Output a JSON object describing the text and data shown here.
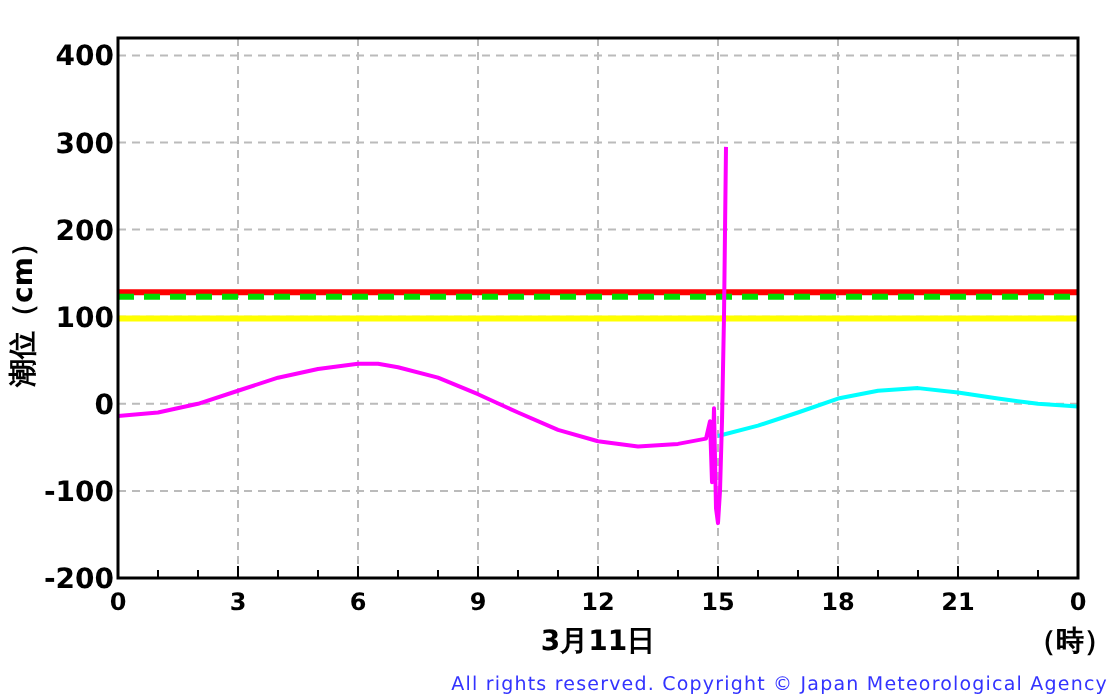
{
  "chart_data": {
    "type": "line",
    "xlabel": "3月11日",
    "ylabel": "潮位（cm）",
    "annotations": [
      "（時）",
      "All rights reserved. Copyright © Japan Meteorological Agency"
    ],
    "xlim": [
      "--03-11T00:00",
      "--03-12T00:00"
    ],
    "xticks": [
      {
        "value": "--03-11T00:00",
        "label": "0"
      },
      {
        "value": "--03-11T01:00",
        "label": null
      },
      {
        "value": "--03-11T02:00",
        "label": null
      },
      {
        "value": "--03-11T03:00",
        "label": "3"
      },
      {
        "value": "--03-11T04:00",
        "label": null
      },
      {
        "value": "--03-11T05:00",
        "label": null
      },
      {
        "value": "--03-11T06:00",
        "label": "6"
      },
      {
        "value": "--03-11T07:00",
        "label": null
      },
      {
        "value": "--03-11T08:00",
        "label": null
      },
      {
        "value": "--03-11T09:00",
        "label": "9"
      },
      {
        "value": "--03-11T10:00",
        "label": null
      },
      {
        "value": "--03-11T11:00",
        "label": null
      },
      {
        "value": "--03-11T12:00",
        "label": "12"
      },
      {
        "value": "--03-11T13:00",
        "label": null
      },
      {
        "value": "--03-11T14:00",
        "label": null
      },
      {
        "value": "--03-11T15:00",
        "label": "15"
      },
      {
        "value": "--03-11T16:00",
        "label": null
      },
      {
        "value": "--03-11T17:00",
        "label": null
      },
      {
        "value": "--03-11T18:00",
        "label": "18"
      },
      {
        "value": "--03-11T19:00",
        "label": null
      },
      {
        "value": "--03-11T20:00",
        "label": null
      },
      {
        "value": "--03-11T21:00",
        "label": "21"
      },
      {
        "value": "--03-11T22:00",
        "label": null
      },
      {
        "value": "--03-11T23:00",
        "label": null
      },
      {
        "value": "--03-12T00:00",
        "label": "0"
      }
    ],
    "ylim": [
      -200,
      420
    ],
    "yticks": [
      -200,
      -100,
      0,
      100,
      200,
      300,
      400
    ],
    "grid": true,
    "series": [
      {
        "color": "#00ffff",
        "x": [
          "--03-11T15:00",
          "--03-11T16:00",
          "--03-11T17:00",
          "--03-11T18:00",
          "--03-11T19:00",
          "--03-11T20:00",
          "--03-11T21:00",
          "--03-11T22:00",
          "--03-11T23:00",
          "--03-12T00:00"
        ],
        "values": [
          -37,
          -25,
          -10,
          6,
          15,
          18,
          13,
          6,
          0,
          -3
        ]
      },
      {
        "color": "#ff00ff",
        "x": [
          "--03-11T00:00",
          "--03-11T01:00",
          "--03-11T02:00",
          "--03-11T03:00",
          "--03-11T04:00",
          "--03-11T05:00",
          "--03-11T06:00",
          "--03-11T06:30",
          "--03-11T07:00",
          "--03-11T08:00",
          "--03-11T09:00",
          "--03-11T10:00",
          "--03-11T11:00",
          "--03-11T12:00",
          "--03-11T13:00",
          "--03-11T14:00",
          "--03-11T14:42",
          "--03-11T14:48",
          "--03-11T14:51",
          "--03-11T14:54",
          "--03-11T14:57",
          "--03-11T15:00",
          "--03-11T15:03",
          "--03-11T15:06",
          "--03-11T15:09",
          "--03-11T15:12"
        ],
        "values": [
          -14,
          -10,
          0,
          15,
          30,
          40,
          46,
          46,
          42,
          30,
          11,
          -10,
          -30,
          -43,
          -49,
          -46,
          -40,
          -20,
          -90,
          -5,
          -120,
          -137,
          -100,
          -20,
          100,
          295
        ]
      }
    ],
    "ref_lines": [
      {
        "axis": "y",
        "value": 128,
        "color": "#ff0000",
        "line_style": "solid"
      },
      {
        "axis": "y",
        "value": 123,
        "color": "#00dd00",
        "line_style": "dashed"
      },
      {
        "axis": "y",
        "value": 98,
        "color": "#ffff00",
        "line_style": "solid"
      }
    ]
  }
}
